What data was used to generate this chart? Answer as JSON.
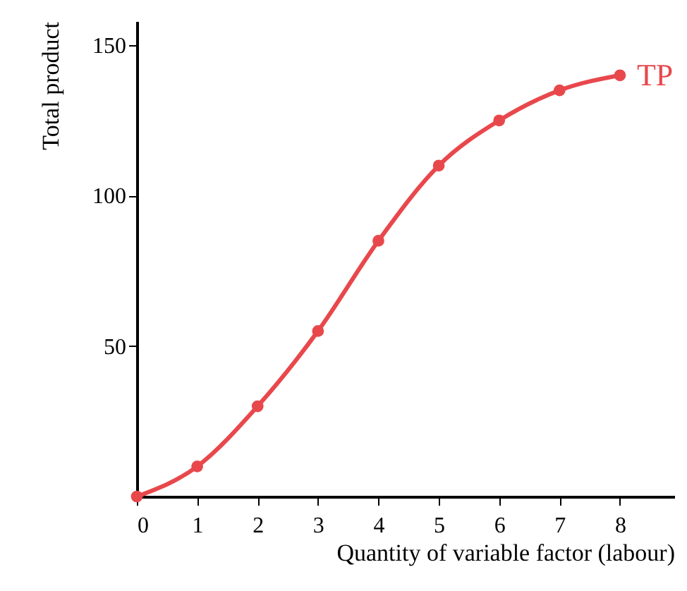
{
  "chart_data": {
    "type": "line",
    "xlabel": "Quantity of variable factor (labour)",
    "ylabel": "Total product",
    "x": [
      0,
      1,
      2,
      3,
      4,
      5,
      6,
      7,
      8
    ],
    "series": [
      {
        "name": "TP",
        "color": "#e8484c",
        "values": [
          0,
          10,
          30,
          55,
          85,
          110,
          125,
          135,
          140
        ]
      }
    ],
    "xlim": [
      0,
      8.9
    ],
    "ylim": [
      0,
      158
    ],
    "xticks": [
      {
        "value": 0,
        "label": "0"
      },
      1,
      2,
      3,
      4,
      5,
      6,
      7,
      8
    ],
    "yticks": [
      50,
      100,
      150
    ],
    "grid": false,
    "legend": false,
    "marker": "circle",
    "line_style": "solid"
  }
}
